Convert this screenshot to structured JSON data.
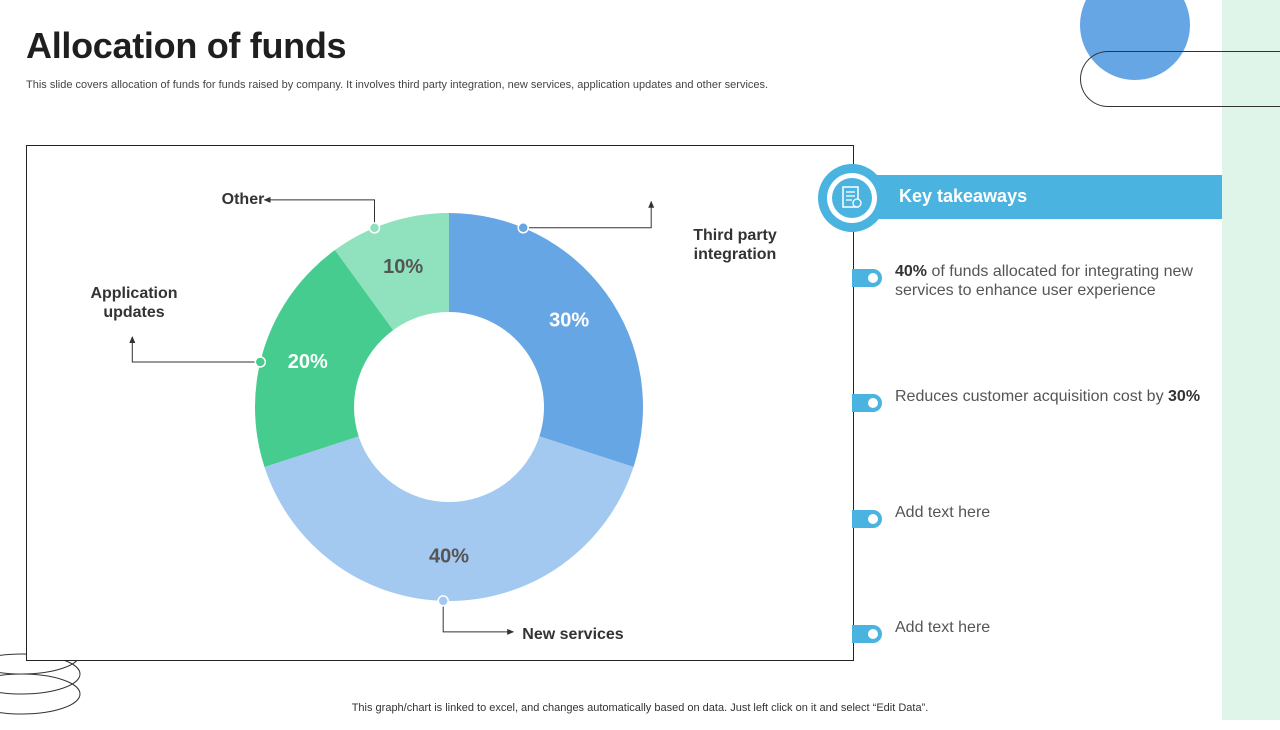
{
  "title": "Allocation of funds",
  "subtitle": "This slide covers  allocation of funds for funds raised by company. It involves third party integration, new services, application updates and other services.",
  "footer": "This graph/chart is linked to excel, and changes automatically based on data. Just left click on it and select “Edit Data”.",
  "key_takeaways": {
    "header": "Key takeaways",
    "icon": "document-icon",
    "items": [
      {
        "bold": "40%",
        "text": " of funds allocated for integrating new services to enhance user experience",
        "bold_position": "start"
      },
      {
        "text": "Reduces customer acquisition cost by ",
        "bold": "30%",
        "bold_position": "end"
      },
      {
        "text": "Add text here"
      },
      {
        "text": "Add text here"
      }
    ]
  },
  "colors": {
    "third_party": "#67a6e4",
    "new_services": "#a4c9f0",
    "application_updates": "#46cc8e",
    "other": "#8fe2bd",
    "accent": "#4ab3e0"
  },
  "chart_data": {
    "type": "pie",
    "donut": true,
    "title": "",
    "slices": [
      {
        "label": "Third party integration",
        "value": 30,
        "display": "30%",
        "color": "#67a6e4"
      },
      {
        "label": "New services",
        "value": 40,
        "display": "40%",
        "color": "#a4c9f0"
      },
      {
        "label": "Application updates",
        "value": 20,
        "display": "20%",
        "color": "#46cc8e"
      },
      {
        "label": "Other",
        "value": 10,
        "display": "10%",
        "color": "#8fe2bd"
      }
    ]
  }
}
